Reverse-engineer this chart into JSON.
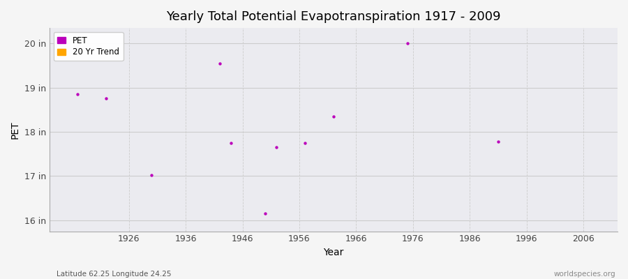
{
  "title": "Yearly Total Potential Evapotranspiration 1917 - 2009",
  "xlabel": "Year",
  "ylabel": "PET",
  "subtitle_left": "Latitude 62.25 Longitude 24.25",
  "subtitle_right": "worldspecies.org",
  "xlim": [
    1912,
    2012
  ],
  "ylim": [
    15.75,
    20.35
  ],
  "yticks": [
    16,
    17,
    18,
    19,
    20
  ],
  "ytick_labels": [
    "16 in",
    "17 in",
    "18 in",
    "19 in",
    "20 in"
  ],
  "xticks": [
    1926,
    1936,
    1946,
    1956,
    1966,
    1976,
    1986,
    1996,
    2006
  ],
  "pet_color": "#bb00bb",
  "trend_color": "#ffa500",
  "bg_color_outer": "#f5f5f5",
  "bg_color_inner": "#ebebf0",
  "grid_color_h": "#cccccc",
  "grid_color_v": "#cccccc",
  "pet_data": [
    [
      1917,
      18.85
    ],
    [
      1922,
      18.75
    ],
    [
      1930,
      17.02
    ],
    [
      1942,
      19.55
    ],
    [
      1944,
      17.75
    ],
    [
      1950,
      16.15
    ],
    [
      1952,
      17.65
    ],
    [
      1957,
      17.75
    ],
    [
      1962,
      18.35
    ],
    [
      1975,
      20.0
    ],
    [
      1991,
      17.78
    ]
  ],
  "legend_labels": [
    "PET",
    "20 Yr Trend"
  ]
}
